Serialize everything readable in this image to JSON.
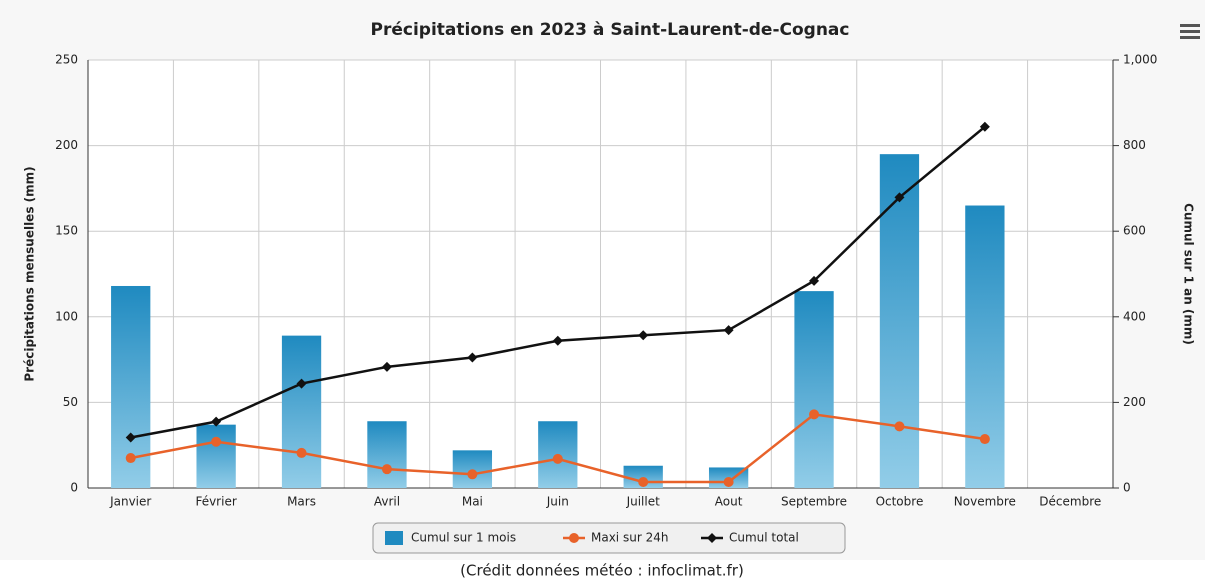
{
  "chart_data": {
    "type": "bar-line",
    "title": "Précipitations en 2023 à Saint-Laurent-de-Cognac",
    "y_label": "Précipitations mensuelles (mm)",
    "y2_label": "Cumul sur 1 an (mm)",
    "credit": "(Crédit données météo : infoclimat.fr)",
    "categories": [
      "Janvier",
      "Février",
      "Mars",
      "Avril",
      "Mai",
      "Juin",
      "Juillet",
      "Aout",
      "Septembre",
      "Octobre",
      "Novembre",
      "Décembre"
    ],
    "series": [
      {
        "name": "Cumul sur 1 mois",
        "type": "bar",
        "color": "#1f8ac0",
        "values": [
          118,
          37,
          89,
          39,
          22,
          39,
          13,
          12,
          115,
          195,
          165,
          null
        ]
      },
      {
        "name": "Maxi sur 24h",
        "type": "line",
        "color": "#e8622a",
        "values": [
          17.5,
          27,
          20.5,
          11,
          8,
          17,
          3.5,
          3.5,
          43,
          36,
          28.6,
          null
        ]
      },
      {
        "name": "Cumul total",
        "type": "line",
        "axis": "y2",
        "color": "#111111",
        "values": [
          118,
          155,
          244,
          283,
          305,
          344,
          357,
          369,
          484,
          679,
          844,
          null
        ]
      }
    ],
    "ylim": [
      0,
      250
    ],
    "yticks": [
      0,
      50,
      100,
      150,
      200,
      250
    ],
    "y2lim": [
      0,
      1000
    ],
    "y2ticks": [
      0,
      200,
      400,
      600,
      800,
      {
        "value": 1000,
        "label": "1,000"
      }
    ],
    "grid": true
  }
}
